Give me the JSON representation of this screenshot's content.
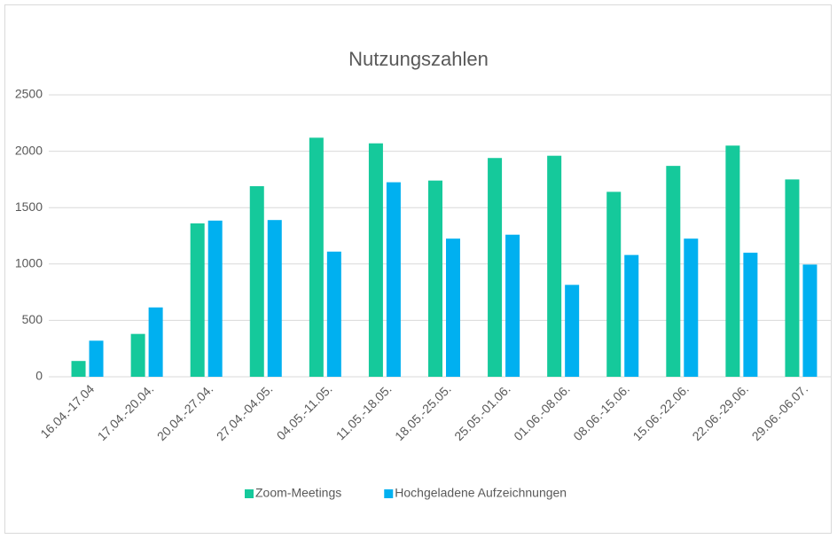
{
  "chart_data": {
    "type": "bar",
    "title": "Nutzungszahlen",
    "categories": [
      "16.04.-17.04",
      "17.04.-20.04.",
      "20.04.-27.04.",
      "27.04.-04.05.",
      "04.05.-11.05.",
      "11.05.-18.05.",
      "18.05.-25.05.",
      "25.05.-01.06.",
      "01.06.-08.06.",
      "08.06.-15.06.",
      "15.06.-22.06.",
      "22.06.-29.06.",
      "29.06.-06.07."
    ],
    "series": [
      {
        "name": "Zoom-Meetings",
        "color": "#15c99b",
        "values": [
          140,
          380,
          1360,
          1690,
          2120,
          2070,
          1740,
          1940,
          1960,
          1640,
          1870,
          2050,
          1750
        ]
      },
      {
        "name": "Hochgeladene Aufzeichnungen",
        "color": "#00b0f0",
        "values": [
          320,
          615,
          1385,
          1390,
          1110,
          1725,
          1225,
          1260,
          815,
          1080,
          1225,
          1100,
          995
        ]
      }
    ],
    "ylim": [
      0,
      2500
    ],
    "yticks": [
      0,
      500,
      1000,
      1500,
      2000,
      2500
    ],
    "grid": true,
    "legend": "bottom"
  }
}
